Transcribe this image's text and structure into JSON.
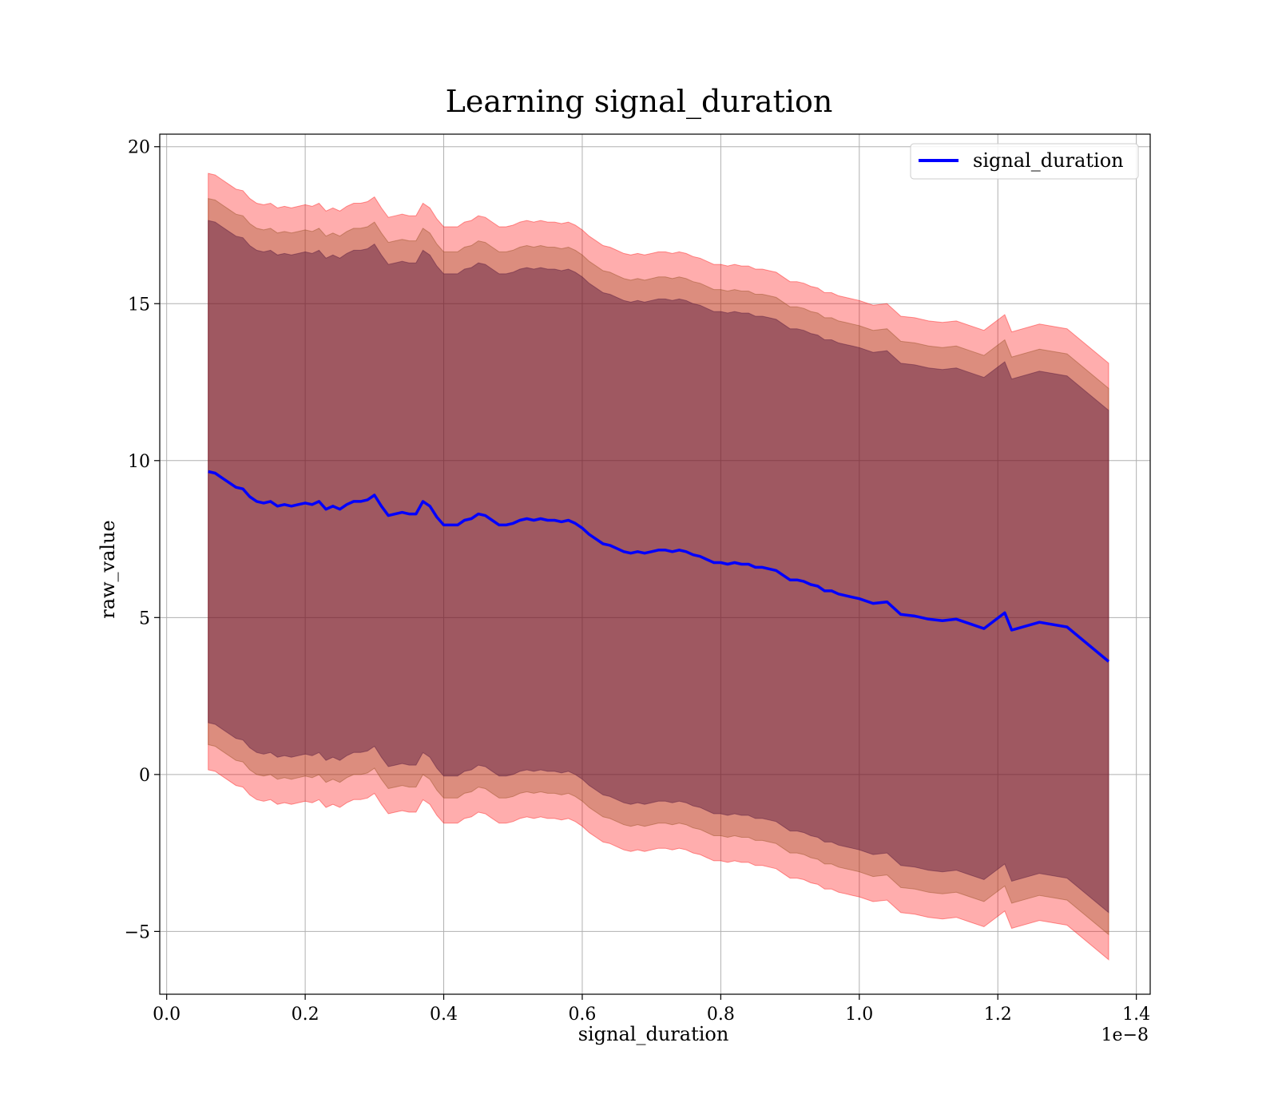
{
  "chart_data": {
    "type": "line",
    "title": "Learning signal_duration",
    "xlabel": "signal_duration",
    "ylabel": "raw_value",
    "x_offset_label": "1e−8",
    "xlim": [
      -0.01,
      1.42
    ],
    "ylim": [
      -7.0,
      20.4
    ],
    "xticks": [
      0.0,
      0.2,
      0.4,
      0.6,
      0.8,
      1.0,
      1.2,
      1.4
    ],
    "xtick_labels": [
      "0.0",
      "0.2",
      "0.4",
      "0.6",
      "0.8",
      "1.0",
      "1.2",
      "1.4"
    ],
    "yticks": [
      -5,
      0,
      5,
      10,
      15,
      20
    ],
    "ytick_labels": [
      "−5",
      "0",
      "5",
      "10",
      "15",
      "20"
    ],
    "grid": true,
    "legend": {
      "placement": "top-right",
      "entries": [
        "signal_duration"
      ]
    },
    "colors": {
      "line": "#0000ff",
      "outer_band": "#ff0000",
      "middle_band": "#8b4513",
      "inner_band": "#4b0f3a"
    },
    "bands": [
      {
        "name": "outer",
        "lower_offset": 9.5,
        "upper_offset": 9.5,
        "opacity": 0.32
      },
      {
        "name": "middle",
        "lower_offset": 8.7,
        "upper_offset": 8.7,
        "opacity": 0.3
      },
      {
        "name": "inner",
        "lower_offset": 8.0,
        "upper_offset": 8.0,
        "opacity": 0.42
      }
    ],
    "series": [
      {
        "name": "signal_duration",
        "x": [
          0.06,
          0.07,
          0.08,
          0.09,
          0.1,
          0.11,
          0.12,
          0.13,
          0.14,
          0.15,
          0.16,
          0.17,
          0.18,
          0.19,
          0.2,
          0.21,
          0.22,
          0.23,
          0.24,
          0.25,
          0.26,
          0.27,
          0.28,
          0.29,
          0.3,
          0.31,
          0.32,
          0.33,
          0.34,
          0.35,
          0.36,
          0.37,
          0.38,
          0.39,
          0.4,
          0.41,
          0.42,
          0.43,
          0.44,
          0.45,
          0.46,
          0.47,
          0.48,
          0.49,
          0.5,
          0.51,
          0.52,
          0.53,
          0.54,
          0.55,
          0.56,
          0.57,
          0.58,
          0.59,
          0.6,
          0.61,
          0.62,
          0.63,
          0.64,
          0.65,
          0.66,
          0.67,
          0.68,
          0.69,
          0.7,
          0.71,
          0.72,
          0.73,
          0.74,
          0.75,
          0.76,
          0.77,
          0.78,
          0.79,
          0.8,
          0.81,
          0.82,
          0.83,
          0.84,
          0.85,
          0.86,
          0.87,
          0.88,
          0.89,
          0.9,
          0.91,
          0.92,
          0.93,
          0.94,
          0.95,
          0.96,
          0.97,
          0.98,
          0.99,
          1.0,
          1.02,
          1.04,
          1.06,
          1.08,
          1.1,
          1.12,
          1.14,
          1.16,
          1.18,
          1.21,
          1.22,
          1.26,
          1.3,
          1.36
        ],
        "y": [
          9.65,
          9.6,
          9.45,
          9.3,
          9.15,
          9.1,
          8.85,
          8.7,
          8.65,
          8.7,
          8.55,
          8.6,
          8.55,
          8.6,
          8.65,
          8.6,
          8.7,
          8.45,
          8.55,
          8.45,
          8.6,
          8.7,
          8.7,
          8.75,
          8.9,
          8.55,
          8.25,
          8.3,
          8.35,
          8.3,
          8.3,
          8.7,
          8.55,
          8.2,
          7.95,
          7.95,
          7.95,
          8.1,
          8.15,
          8.3,
          8.25,
          8.1,
          7.95,
          7.95,
          8.0,
          8.1,
          8.15,
          8.1,
          8.15,
          8.1,
          8.1,
          8.05,
          8.1,
          8.0,
          7.85,
          7.65,
          7.5,
          7.35,
          7.3,
          7.2,
          7.1,
          7.05,
          7.1,
          7.05,
          7.1,
          7.15,
          7.15,
          7.1,
          7.15,
          7.1,
          7.0,
          6.95,
          6.85,
          6.75,
          6.75,
          6.7,
          6.75,
          6.7,
          6.7,
          6.6,
          6.6,
          6.55,
          6.5,
          6.35,
          6.2,
          6.2,
          6.15,
          6.05,
          6.0,
          5.85,
          5.85,
          5.75,
          5.7,
          5.65,
          5.6,
          5.45,
          5.5,
          5.1,
          5.05,
          4.95,
          4.9,
          4.95,
          4.8,
          4.65,
          5.15,
          4.6,
          4.85,
          4.7,
          3.6
        ]
      }
    ]
  }
}
